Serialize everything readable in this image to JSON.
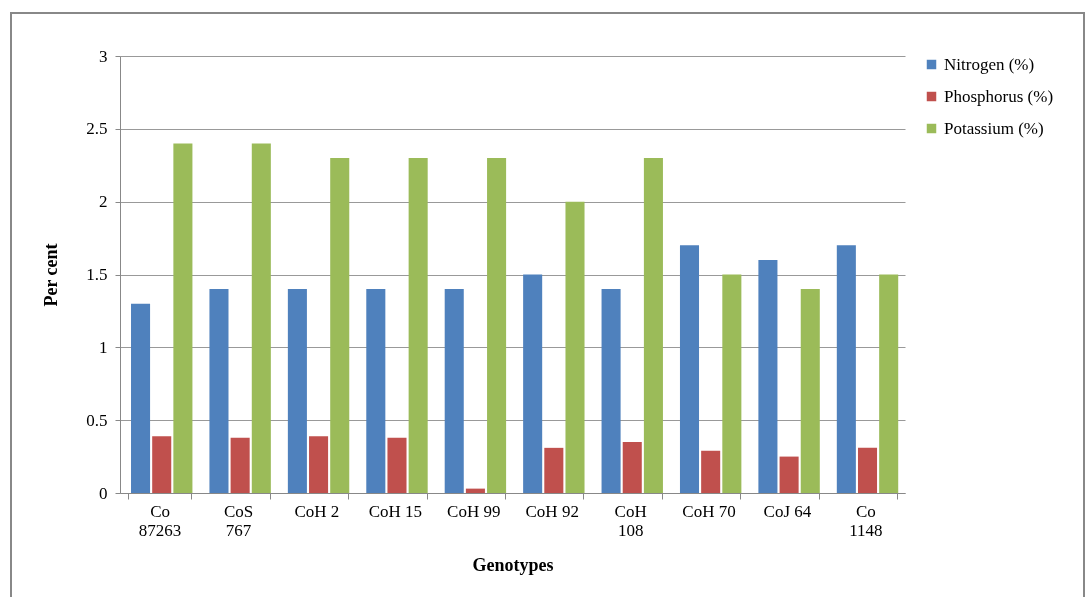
{
  "chart_data": {
    "type": "bar",
    "xlabel": "Genotypes",
    "ylabel": "Per cent",
    "categories": [
      "Co 87263",
      "CoS 767",
      "CoH 2",
      "CoH 15",
      "CoH 99",
      "CoH 92",
      "CoH 108",
      "CoH 70",
      "CoJ 64",
      "Co 1148"
    ],
    "series": [
      {
        "name": "Nitrogen (%)",
        "color": "#4f81bd",
        "values": [
          1.3,
          1.4,
          1.4,
          1.4,
          1.4,
          1.5,
          1.4,
          1.7,
          1.6,
          1.7
        ]
      },
      {
        "name": "Phosphorus (%)",
        "color": "#c0504d",
        "values": [
          0.39,
          0.38,
          0.39,
          0.38,
          0.03,
          0.31,
          0.35,
          0.29,
          0.25,
          0.31
        ]
      },
      {
        "name": "Potassium (%)",
        "color": "#9bbb59",
        "values": [
          2.4,
          2.4,
          2.3,
          2.3,
          2.3,
          2.0,
          2.3,
          1.5,
          1.4,
          1.5
        ]
      }
    ],
    "ylim": [
      0,
      3
    ],
    "yticks": [
      0,
      0.5,
      1,
      1.5,
      2,
      2.5,
      3
    ],
    "grid": "y",
    "legend": "right"
  }
}
